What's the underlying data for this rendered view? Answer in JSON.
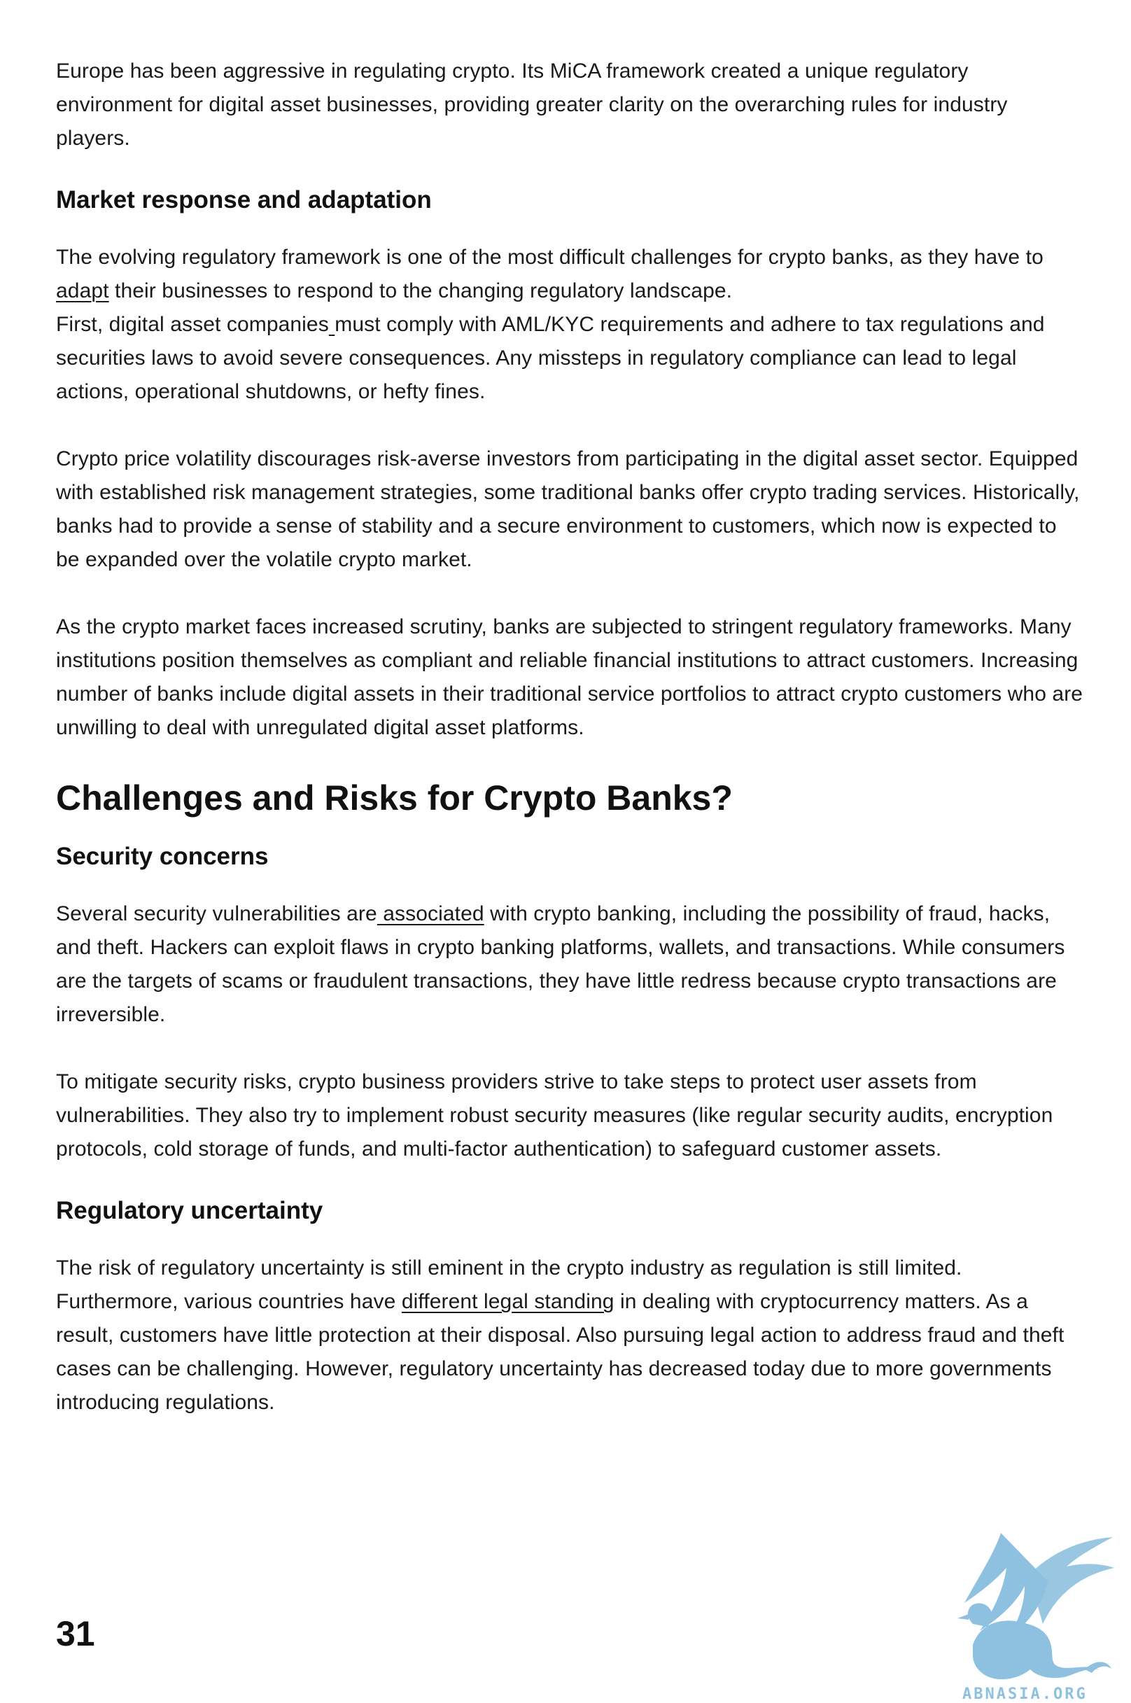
{
  "intro": {
    "paragraph": "Europe has been aggressive in regulating crypto. Its MiCA framework created a unique regulatory environment for digital asset businesses, providing greater clarity on the overarching rules for industry players."
  },
  "market_response": {
    "heading": "Market response and adaptation",
    "p1_before": "The evolving regulatory framework is one of the most difficult challenges for crypto banks, as they have to ",
    "p1_link": "adapt",
    "p1_after": " their businesses to respond to the changing regulatory landscape.",
    "p2_before": "First, digital asset companies",
    "p2_link": " ",
    "p2_after": "must comply with AML/KYC requirements and adhere to tax regulations and securities laws to avoid severe consequences. Any missteps in regulatory compliance can lead to legal actions, operational shutdowns, or hefty fines.",
    "p3": "Crypto price volatility discourages risk-averse investors from participating in the digital asset sector. Equipped with established risk management strategies, some traditional banks offer crypto trading services. Historically, banks had to provide a sense of stability and a secure environment to customers, which now is expected to be expanded over the volatile crypto market.",
    "p4": "As the crypto market faces increased scrutiny, banks are subjected to stringent regulatory frameworks. Many institutions position themselves as compliant and reliable financial institutions to attract customers. Increasing number of banks include digital assets in their traditional service portfolios to attract crypto customers who are unwilling to deal with unregulated digital asset platforms."
  },
  "challenges": {
    "heading": "Challenges and Risks for Crypto Banks?",
    "security": {
      "heading": "Security concerns",
      "p1_before": "Several security vulnerabilities are",
      "p1_link": " associated",
      "p1_after": " with crypto banking, including the possibility of fraud, hacks, and theft. Hackers can exploit flaws in crypto banking platforms, wallets, and transactions. While consumers are the targets of scams or fraudulent transactions, they have little redress because crypto transactions are irreversible.",
      "p2": "To mitigate security risks, crypto business providers strive to take steps to protect user assets from vulnerabilities. They also try to implement robust security measures (like regular security audits, encryption protocols, cold storage of funds, and multi-factor authentication) to safeguard customer assets."
    },
    "regulatory": {
      "heading": "Regulatory uncertainty",
      "p1_before": "The risk of regulatory uncertainty is still eminent in the crypto industry as regulation is still limited. Furthermore, various countries have ",
      "p1_link": "different legal standing",
      "p1_after": " in dealing with cryptocurrency matters. As a result, customers have little protection at their disposal. Also pursuing legal action to address fraud and theft cases can be challenging. However, regulatory uncertainty has decreased today due to more governments introducing regulations."
    }
  },
  "footer": {
    "page_number": "31",
    "logo_text": "ABNASIA.ORG",
    "logo_icon": "griffin-logo-icon",
    "logo_color": "#8ec1df"
  }
}
